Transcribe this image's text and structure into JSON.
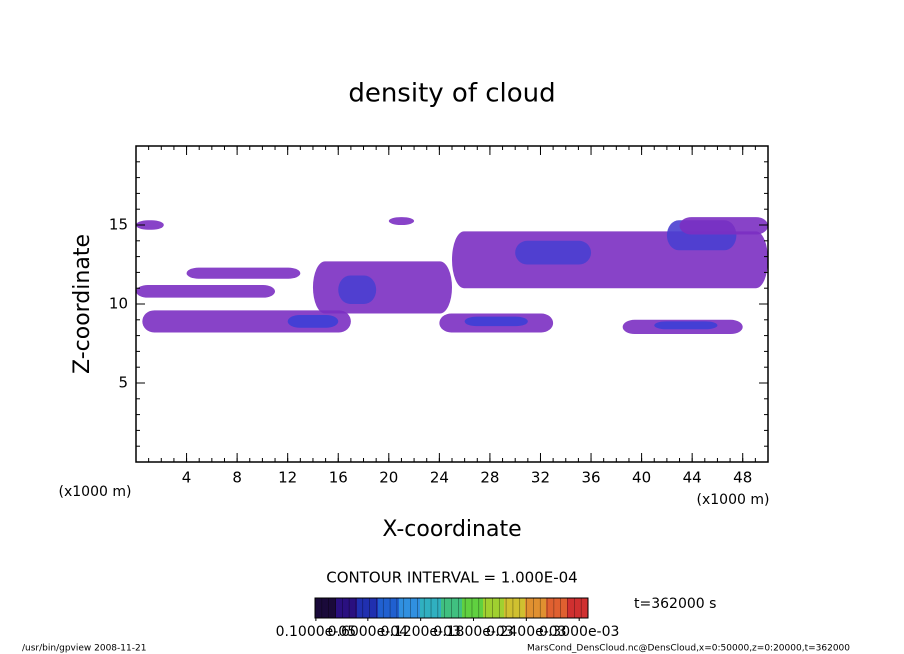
{
  "chart_data": {
    "type": "contour",
    "title": "density of cloud",
    "xlabel": "X-coordinate",
    "ylabel": "Z-coordinate",
    "xunit": "(x1000 m)",
    "yunit": "(x1000 m)",
    "xlim": [
      0,
      50
    ],
    "ylim": [
      0,
      20
    ],
    "xticks": [
      4,
      8,
      12,
      16,
      20,
      24,
      28,
      32,
      36,
      40,
      44,
      48
    ],
    "yticks": [
      5,
      10,
      15
    ],
    "xminor": 1,
    "yminor": 1,
    "regions": [
      {
        "x": [
          0,
          2.2
        ],
        "z": [
          14.7,
          15.3
        ],
        "color": "#7b2fc2"
      },
      {
        "x": [
          0,
          11
        ],
        "z": [
          10.4,
          11.2
        ],
        "color": "#7b2fc2"
      },
      {
        "x": [
          4,
          13
        ],
        "z": [
          11.6,
          12.3
        ],
        "color": "#7b2fc2"
      },
      {
        "x": [
          0.5,
          17
        ],
        "z": [
          8.2,
          9.6
        ],
        "color": "#7b2fc2"
      },
      {
        "x": [
          12,
          16
        ],
        "z": [
          8.5,
          9.3
        ],
        "color": "#3d3fd6"
      },
      {
        "x": [
          14,
          25
        ],
        "z": [
          9.4,
          12.7
        ],
        "color": "#7b2fc2"
      },
      {
        "x": [
          16,
          19
        ],
        "z": [
          10,
          11.8
        ],
        "color": "#4a3fd0"
      },
      {
        "x": [
          24,
          33
        ],
        "z": [
          8.2,
          9.4
        ],
        "color": "#7b2fc2"
      },
      {
        "x": [
          26,
          31
        ],
        "z": [
          8.6,
          9.2
        ],
        "color": "#3d3fd6"
      },
      {
        "x": [
          25,
          50
        ],
        "z": [
          11,
          14.6
        ],
        "color": "#7b2fc2"
      },
      {
        "x": [
          30,
          36
        ],
        "z": [
          12.5,
          14
        ],
        "color": "#4a3fd0"
      },
      {
        "x": [
          42,
          47.5
        ],
        "z": [
          13.4,
          15.3
        ],
        "color": "#4a3fd0"
      },
      {
        "x": [
          43,
          50
        ],
        "z": [
          14.4,
          15.5
        ],
        "color": "#7b2fc2"
      },
      {
        "x": [
          38.5,
          48
        ],
        "z": [
          8.1,
          9
        ],
        "color": "#7b2fc2"
      },
      {
        "x": [
          41,
          46
        ],
        "z": [
          8.4,
          8.9
        ],
        "color": "#3d3fd6"
      },
      {
        "x": [
          20,
          22
        ],
        "z": [
          15,
          15.5
        ],
        "color": "#7b2fc2"
      }
    ],
    "contour_interval": "CONTOUR INTERVAL = 1.000E-04",
    "time_label": "t=362000 s",
    "colorbar": {
      "range": [
        0,
        0.00031
      ],
      "colors": [
        "#1a0a3a",
        "#2a1080",
        "#2030b0",
        "#2060d0",
        "#3090e0",
        "#30b0c0",
        "#40c080",
        "#60d040",
        "#a0d030",
        "#d0c030",
        "#e09030",
        "#e06030",
        "#d03030"
      ],
      "ticks": [
        {
          "value": 1e-06,
          "label": "0.1000e-05"
        },
        {
          "value": 6e-05,
          "label": "0.6000e-04"
        },
        {
          "value": 0.00012,
          "label": "0.1200e-03"
        },
        {
          "value": 0.00018,
          "label": "0.1800e-03"
        },
        {
          "value": 0.00024,
          "label": "0.2400e-03"
        },
        {
          "value": 0.0003,
          "label": "0.3000e-03"
        }
      ]
    },
    "footer_left": "/usr/bin/gpview   2008-11-21",
    "footer_right": "MarsCond_DensCloud.nc@DensCloud,x=0:50000,z=0:20000,t=362000"
  }
}
